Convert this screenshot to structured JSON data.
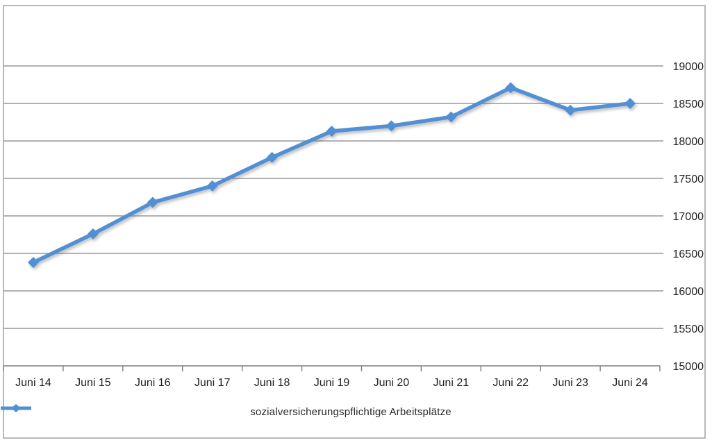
{
  "chart_data": {
    "type": "line",
    "title": "",
    "categories": [
      "Juni 14",
      "Juni 15",
      "Juni 16",
      "Juni 17",
      "Juni 18",
      "Juni 19",
      "Juni 20",
      "Juni 21",
      "Juni 22",
      "Juni 23",
      "Juni 24"
    ],
    "series": [
      {
        "name": "sozialversicherungspflichtige Arbeitsplätze",
        "values": [
          16380,
          16760,
          17180,
          17400,
          17780,
          18130,
          18200,
          18320,
          18710,
          18410,
          18500
        ]
      }
    ],
    "xlabel": "",
    "ylabel": "",
    "ylim": [
      15000,
      19000
    ],
    "yticks": [
      15000,
      15500,
      16000,
      16500,
      17000,
      17500,
      18000,
      18500,
      19000
    ],
    "grid": true,
    "legend_position": "bottom",
    "marker": "diamond"
  },
  "legend": {
    "label": "sozialversicherungspflichtige Arbeitsplätze"
  },
  "colors": {
    "line": "#5190D5",
    "grid": "#979797",
    "axis": "#7d7d7d",
    "border": "#9a9a9a",
    "text": "#1f1f1f"
  }
}
